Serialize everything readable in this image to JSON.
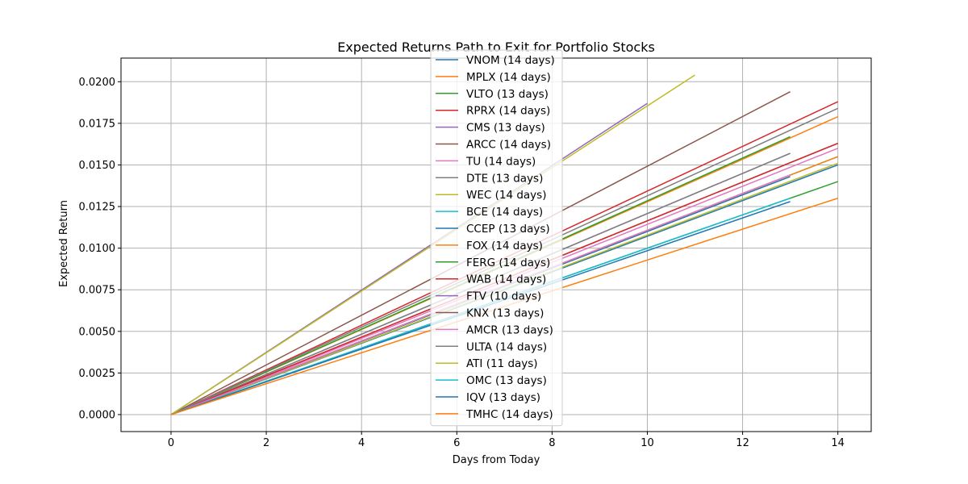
{
  "chart_data": {
    "type": "line",
    "title": "Expected Returns Path to Exit for Portfolio Stocks",
    "xlabel": "Days from Today",
    "ylabel": "Expected Return",
    "xlim": [
      -1.05,
      14.7
    ],
    "ylim": [
      -0.00102,
      0.02142
    ],
    "xticks": [
      0,
      2,
      4,
      6,
      8,
      10,
      12,
      14
    ],
    "yticks": [
      0.0,
      0.0025,
      0.005,
      0.0075,
      0.01,
      0.0125,
      0.015,
      0.0175,
      0.02
    ],
    "xtick_labels": [
      "0",
      "2",
      "4",
      "6",
      "8",
      "10",
      "12",
      "14"
    ],
    "ytick_labels": [
      "0.0000",
      "0.0025",
      "0.0050",
      "0.0075",
      "0.0100",
      "0.0125",
      "0.0150",
      "0.0175",
      "0.0200"
    ],
    "grid": true,
    "legend_position": "top-center",
    "series": [
      {
        "name": "VNOM (14 days)",
        "color": "#1f77b4",
        "x_end": 14,
        "y_end": 0.015
      },
      {
        "name": "MPLX (14 days)",
        "color": "#ff7f0e",
        "x_end": 14,
        "y_end": 0.0179
      },
      {
        "name": "VLTO (13 days)",
        "color": "#2ca02c",
        "x_end": 13,
        "y_end": 0.0167
      },
      {
        "name": "RPRX (14 days)",
        "color": "#d62728",
        "x_end": 14,
        "y_end": 0.0188
      },
      {
        "name": "CMS (13 days)",
        "color": "#9467bd",
        "x_end": 13,
        "y_end": 0.0157
      },
      {
        "name": "ARCC (14 days)",
        "color": "#8c564b",
        "x_end": 14,
        "y_end": 0.0163
      },
      {
        "name": "TU (14 days)",
        "color": "#e377c2",
        "x_end": 14,
        "y_end": 0.016
      },
      {
        "name": "DTE (13 days)",
        "color": "#7f7f7f",
        "x_end": 13,
        "y_end": 0.0157
      },
      {
        "name": "WEC (14 days)",
        "color": "#bcbd22",
        "x_end": 14,
        "y_end": 0.0151
      },
      {
        "name": "BCE (14 days)",
        "color": "#17becf",
        "x_end": 14,
        "y_end": 0.0155
      },
      {
        "name": "CCEP (13 days)",
        "color": "#1f77b4",
        "x_end": 13,
        "y_end": 0.0143
      },
      {
        "name": "FOX (14 days)",
        "color": "#ff7f0e",
        "x_end": 14,
        "y_end": 0.0155
      },
      {
        "name": "FERG (14 days)",
        "color": "#2ca02c",
        "x_end": 14,
        "y_end": 0.014
      },
      {
        "name": "WAB (14 days)",
        "color": "#d62728",
        "x_end": 14,
        "y_end": 0.0163
      },
      {
        "name": "FTV (10 days)",
        "color": "#9467bd",
        "x_end": 10,
        "y_end": 0.0187
      },
      {
        "name": "KNX (13 days)",
        "color": "#8c564b",
        "x_end": 13,
        "y_end": 0.0194
      },
      {
        "name": "AMCR (13 days)",
        "color": "#e377c2",
        "x_end": 13,
        "y_end": 0.0144
      },
      {
        "name": "ULTA (14 days)",
        "color": "#7f7f7f",
        "x_end": 14,
        "y_end": 0.0184
      },
      {
        "name": "ATI (11 days)",
        "color": "#bcbd22",
        "x_end": 11,
        "y_end": 0.0204
      },
      {
        "name": "OMC (13 days)",
        "color": "#17becf",
        "x_end": 13,
        "y_end": 0.013
      },
      {
        "name": "IQV (13 days)",
        "color": "#1f77b4",
        "x_end": 13,
        "y_end": 0.0128
      },
      {
        "name": "TMHC (14 days)",
        "color": "#ff7f0e",
        "x_end": 14,
        "y_end": 0.013
      }
    ]
  }
}
